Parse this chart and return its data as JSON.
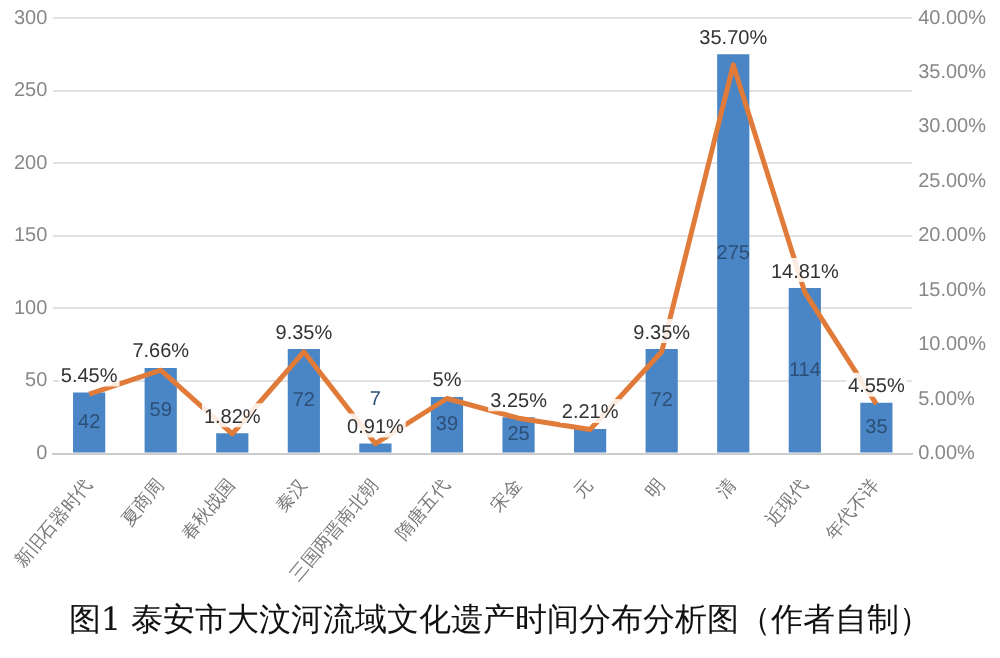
{
  "chart_data": {
    "type": "bar",
    "title": "图1 泰安市大汶河流域文化遗产时间分布分析图（作者自制）",
    "categories": [
      "新旧石器时代",
      "夏商周",
      "春秋战国",
      "秦汉",
      "三国两晋南北朝",
      "隋唐五代",
      "宋金",
      "元",
      "明",
      "清",
      "近现代",
      "年代不详"
    ],
    "series": [
      {
        "color": "#4a86c5",
        "values": [
          42,
          59,
          14,
          72,
          7,
          39,
          25,
          17,
          72,
          275,
          114,
          35
        ],
        "value_labels": [
          "42",
          "59",
          null,
          "72",
          "7",
          "39",
          "25",
          null,
          "72",
          "275",
          "114",
          "35"
        ]
      },
      {
        "type": "line",
        "axis": "y2",
        "color": "#e07b39",
        "values": [
          5.45,
          7.66,
          1.82,
          9.35,
          0.91,
          5.06,
          3.25,
          2.21,
          9.35,
          35.7,
          14.81,
          4.55
        ],
        "value_labels": [
          "5.45%",
          "7.66%",
          "1.82%",
          "9.35%",
          "0.91%",
          "5%",
          "3.25%",
          "2.21%",
          "9.35%",
          "35.70%",
          "14.81%",
          "4.55%"
        ]
      }
    ],
    "ylim": [
      0,
      300
    ],
    "yticks": [
      0,
      50,
      100,
      150,
      200,
      250,
      300
    ],
    "y2lim": [
      0,
      40
    ],
    "y2ticks": [
      {
        "value": 0,
        "label": "0.00%"
      },
      {
        "value": 5,
        "label": "5.00%"
      },
      {
        "value": 10,
        "label": "10.00%"
      },
      {
        "value": 15,
        "label": "15.00%"
      },
      {
        "value": 20,
        "label": "20.00%"
      },
      {
        "value": 25,
        "label": "25.00%"
      },
      {
        "value": 30,
        "label": "30.00%"
      },
      {
        "value": 35,
        "label": "35.00%"
      },
      {
        "value": 40,
        "label": "40.00%"
      }
    ],
    "grid": "y",
    "legend": false,
    "marker": "none"
  }
}
